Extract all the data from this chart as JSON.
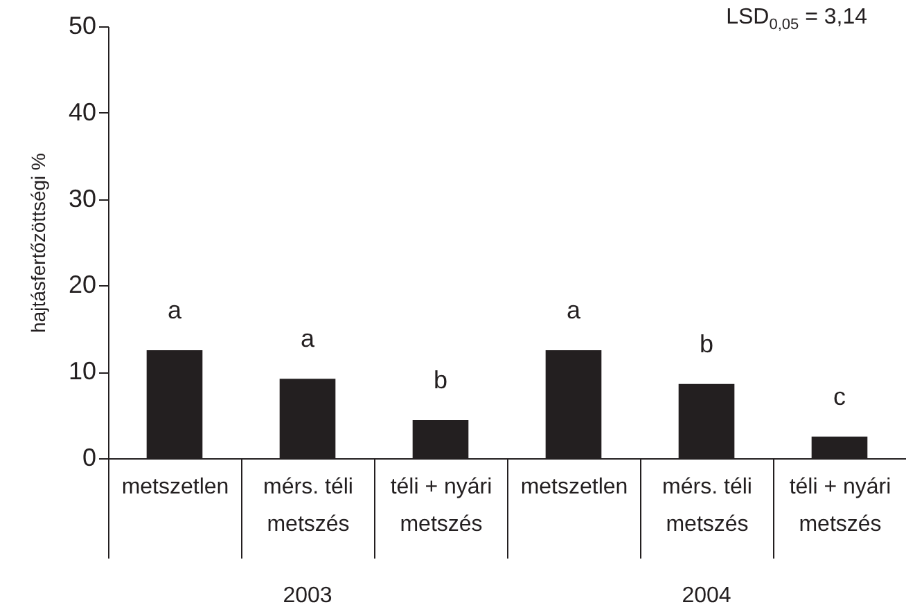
{
  "chart_data": {
    "type": "bar",
    "ylabel": "hajtásfertőzöttségi %",
    "categories": [
      "metszetlen",
      "mérs. téli metszés",
      "téli + nyári metszés",
      "metszetlen",
      "mérs. téli metszés",
      "téli + nyári metszés"
    ],
    "values": [
      12.5,
      9.2,
      4.4,
      12.5,
      8.6,
      2.5
    ],
    "value_labels": [
      "a",
      "a",
      "b",
      "a",
      "b",
      "c"
    ],
    "color": "#231f20",
    "ylim": [
      0,
      50
    ],
    "yticks": [
      0,
      10,
      20,
      30,
      40,
      50
    ],
    "grid": false,
    "annotations": [
      "LSD$_{0,05}$ = 3,14",
      "2003",
      "2004"
    ]
  }
}
